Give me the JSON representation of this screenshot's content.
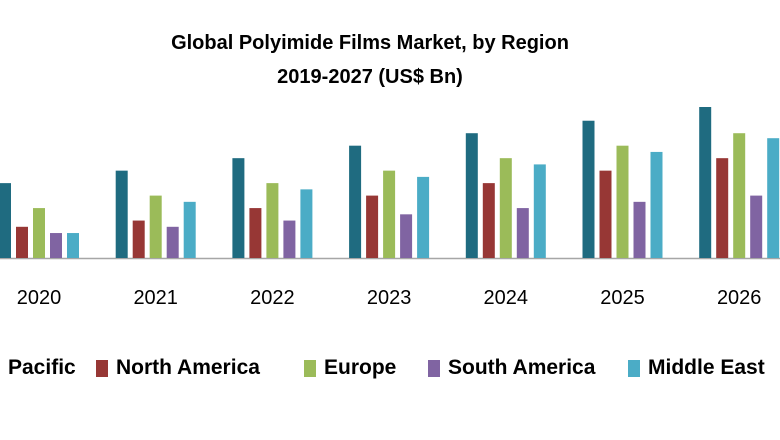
{
  "chart_data": {
    "type": "bar",
    "title": "Global Polyimide Films Market, by Region",
    "subtitle": "2019-2027 (US$ Bn)",
    "categories": [
      "2020",
      "2021",
      "2022",
      "2023",
      "2024",
      "2025",
      "2026"
    ],
    "series": [
      {
        "name": "Pacific",
        "color": "#1f6b80",
        "values": [
          6,
          7,
          8,
          9,
          10,
          11,
          12.1
        ]
      },
      {
        "name": "North America",
        "color": "#973735",
        "values": [
          2.5,
          3,
          4,
          5,
          6,
          7,
          8
        ]
      },
      {
        "name": "Europe",
        "color": "#9bbb59",
        "values": [
          4,
          5,
          6,
          7,
          8,
          9,
          10
        ]
      },
      {
        "name": "South America",
        "color": "#8064a2",
        "values": [
          2,
          2.5,
          3,
          3.5,
          4,
          4.5,
          5
        ]
      },
      {
        "name": "Middle East",
        "color": "#4bacc6",
        "values": [
          2,
          4.5,
          5.5,
          6.5,
          7.5,
          8.5,
          9.6
        ]
      }
    ],
    "ylim": [
      0,
      12.5
    ],
    "grid": false,
    "legend": "bottom"
  }
}
